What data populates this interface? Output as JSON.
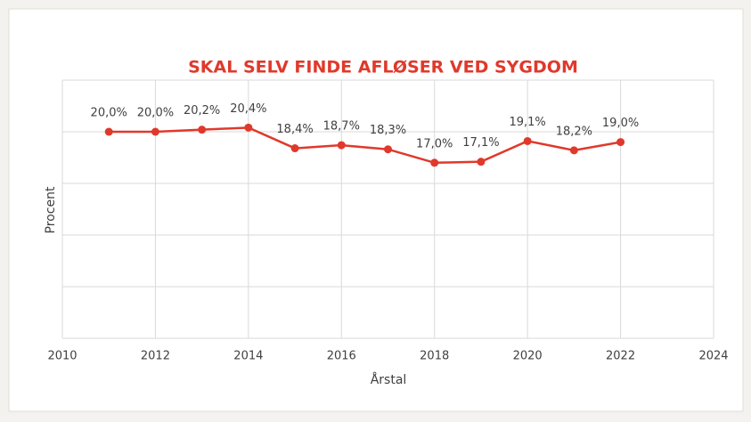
{
  "chart_data": {
    "type": "line",
    "title": "SKAL SELV FINDE AFLØSER VED SYGDOM",
    "x_label": "Årstal",
    "y_label": "Procent",
    "x": [
      2011,
      2012,
      2013,
      2014,
      2015,
      2016,
      2017,
      2018,
      2019,
      2020,
      2021,
      2022
    ],
    "series": [
      {
        "name": "Skal selv finde afløser ved sygdom",
        "color": "#e0392b",
        "values": [
          20.0,
          20.0,
          20.2,
          20.4,
          18.4,
          18.7,
          18.3,
          17.0,
          17.1,
          19.1,
          18.2,
          19.0
        ],
        "value_labels": [
          "20,0%",
          "20,0%",
          "20,2%",
          "20,4%",
          "18,4%",
          "18,7%",
          "18,3%",
          "17,0%",
          "17,1%",
          "19,1%",
          "18,2%",
          "19,0%"
        ]
      }
    ],
    "xlim": [
      2010,
      2024
    ],
    "xticks": [
      2010,
      2012,
      2014,
      2016,
      2018,
      2020,
      2022,
      2024
    ],
    "ylim": [
      0,
      25
    ],
    "yticks": [
      0,
      5,
      10,
      15,
      20,
      25
    ],
    "grid": true
  }
}
